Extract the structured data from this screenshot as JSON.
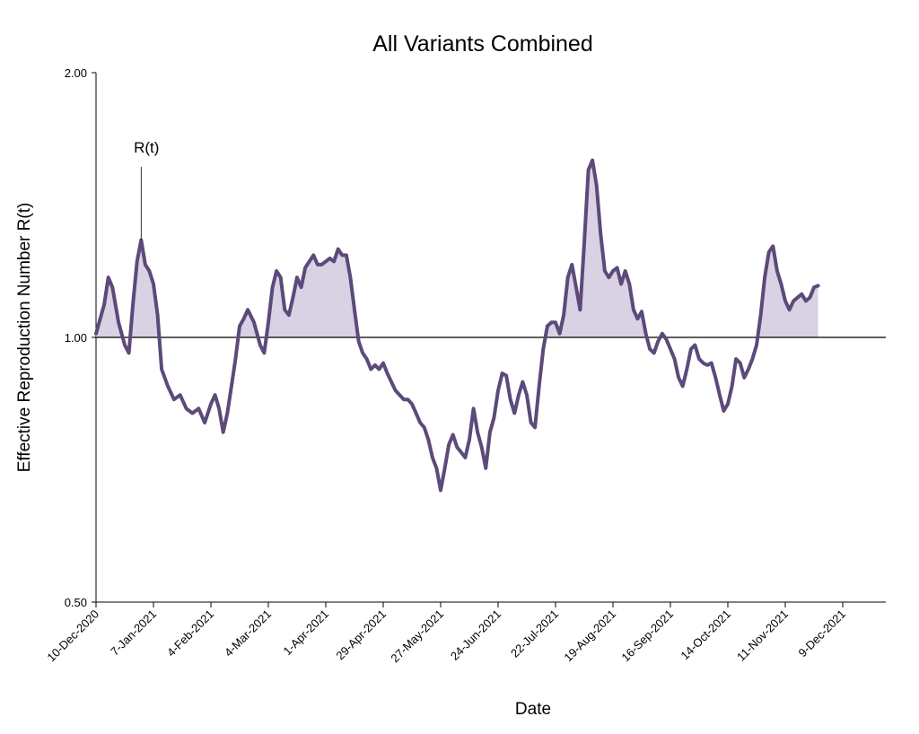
{
  "chart_data": {
    "type": "line",
    "title": "All Variants Combined",
    "x_label": "Date",
    "y_label": "Effective Reproduction Number R(t)",
    "log_y": true,
    "color": "#5b4a7a",
    "fill_color": "#d9d1e4",
    "reference_line": 1,
    "xlim": [
      "2020-12-10",
      "2021-12-30"
    ],
    "xticks": [
      {
        "value": "2020-12-10",
        "label": "10-Dec-2020"
      },
      {
        "value": "2021-01-07",
        "label": "7-Jan-2021"
      },
      {
        "value": "2021-02-04",
        "label": "4-Feb-2021"
      },
      {
        "value": "2021-03-04",
        "label": "4-Mar-2021"
      },
      {
        "value": "2021-04-01",
        "label": "1-Apr-2021"
      },
      {
        "value": "2021-04-29",
        "label": "29-Apr-2021"
      },
      {
        "value": "2021-05-27",
        "label": "27-May-2021"
      },
      {
        "value": "2021-06-24",
        "label": "24-Jun-2021"
      },
      {
        "value": "2021-07-22",
        "label": "22-Jul-2021"
      },
      {
        "value": "2021-08-19",
        "label": "19-Aug-2021"
      },
      {
        "value": "2021-09-16",
        "label": "16-Sep-2021"
      },
      {
        "value": "2021-10-14",
        "label": "14-Oct-2021"
      },
      {
        "value": "2021-11-11",
        "label": "11-Nov-2021"
      },
      {
        "value": "2021-12-09",
        "label": "9-Dec-2021"
      }
    ],
    "ylim": [
      0.5,
      2
    ],
    "yticks": [
      {
        "value": 0.5,
        "label": "0.50"
      },
      {
        "value": 1,
        "label": "1.00"
      },
      {
        "value": 2,
        "label": "2.00"
      }
    ],
    "annotation": {
      "text": "R(t)",
      "x": "2021-01-01",
      "y": 1.29
    },
    "x": [
      "2020-12-10",
      "2020-12-14",
      "2020-12-16",
      "2020-12-18",
      "2020-12-21",
      "2020-12-24",
      "2020-12-26",
      "2020-12-28",
      "2020-12-30",
      "2021-01-01",
      "2021-01-03",
      "2021-01-05",
      "2021-01-07",
      "2021-01-09",
      "2021-01-11",
      "2021-01-14",
      "2021-01-17",
      "2021-01-20",
      "2021-01-23",
      "2021-01-26",
      "2021-01-29",
      "2021-02-01",
      "2021-02-04",
      "2021-02-06",
      "2021-02-08",
      "2021-02-10",
      "2021-02-12",
      "2021-02-14",
      "2021-02-16",
      "2021-02-18",
      "2021-02-20",
      "2021-02-22",
      "2021-02-25",
      "2021-02-28",
      "2021-03-02",
      "2021-03-04",
      "2021-03-06",
      "2021-03-08",
      "2021-03-10",
      "2021-03-12",
      "2021-03-14",
      "2021-03-16",
      "2021-03-18",
      "2021-03-20",
      "2021-03-22",
      "2021-03-24",
      "2021-03-26",
      "2021-03-28",
      "2021-03-30",
      "2021-04-01",
      "2021-04-03",
      "2021-04-05",
      "2021-04-07",
      "2021-04-09",
      "2021-04-11",
      "2021-04-13",
      "2021-04-15",
      "2021-04-17",
      "2021-04-19",
      "2021-04-21",
      "2021-04-23",
      "2021-04-25",
      "2021-04-27",
      "2021-04-29",
      "2021-05-01",
      "2021-05-03",
      "2021-05-05",
      "2021-05-07",
      "2021-05-09",
      "2021-05-11",
      "2021-05-13",
      "2021-05-15",
      "2021-05-17",
      "2021-05-19",
      "2021-05-21",
      "2021-05-23",
      "2021-05-25",
      "2021-05-27",
      "2021-05-29",
      "2021-05-31",
      "2021-06-02",
      "2021-06-04",
      "2021-06-06",
      "2021-06-08",
      "2021-06-10",
      "2021-06-12",
      "2021-06-14",
      "2021-06-16",
      "2021-06-18",
      "2021-06-20",
      "2021-06-22",
      "2021-06-24",
      "2021-06-26",
      "2021-06-28",
      "2021-06-30",
      "2021-07-02",
      "2021-07-04",
      "2021-07-06",
      "2021-07-08",
      "2021-07-10",
      "2021-07-12",
      "2021-07-14",
      "2021-07-16",
      "2021-07-18",
      "2021-07-20",
      "2021-07-22",
      "2021-07-24",
      "2021-07-26",
      "2021-07-28",
      "2021-07-30",
      "2021-08-01",
      "2021-08-03",
      "2021-08-05",
      "2021-08-07",
      "2021-08-09",
      "2021-08-11",
      "2021-08-13",
      "2021-08-15",
      "2021-08-17",
      "2021-08-19",
      "2021-08-21",
      "2021-08-23",
      "2021-08-25",
      "2021-08-27",
      "2021-08-29",
      "2021-08-31",
      "2021-09-02",
      "2021-09-04",
      "2021-09-06",
      "2021-09-08",
      "2021-09-10",
      "2021-09-12",
      "2021-09-14",
      "2021-09-16",
      "2021-09-18",
      "2021-09-20",
      "2021-09-22",
      "2021-09-24",
      "2021-09-26",
      "2021-09-28",
      "2021-09-30",
      "2021-10-02",
      "2021-10-04",
      "2021-10-06",
      "2021-10-08",
      "2021-10-10",
      "2021-10-12",
      "2021-10-14",
      "2021-10-16",
      "2021-10-18",
      "2021-10-20",
      "2021-10-22",
      "2021-10-24",
      "2021-10-26",
      "2021-10-28",
      "2021-10-30",
      "2021-11-01",
      "2021-11-03",
      "2021-11-05",
      "2021-11-07",
      "2021-11-09",
      "2021-11-11",
      "2021-11-13",
      "2021-11-15",
      "2021-11-17",
      "2021-11-19",
      "2021-11-21",
      "2021-11-23",
      "2021-11-25",
      "2021-11-27"
    ],
    "values": [
      1.01,
      1.09,
      1.17,
      1.14,
      1.04,
      0.98,
      0.96,
      1.09,
      1.22,
      1.29,
      1.21,
      1.19,
      1.15,
      1.06,
      0.92,
      0.88,
      0.85,
      0.86,
      0.83,
      0.82,
      0.83,
      0.8,
      0.84,
      0.86,
      0.83,
      0.78,
      0.82,
      0.88,
      0.945,
      1.03,
      1.05,
      1.075,
      1.04,
      0.98,
      0.96,
      1.04,
      1.14,
      1.19,
      1.17,
      1.075,
      1.06,
      1.11,
      1.17,
      1.14,
      1.2,
      1.22,
      1.24,
      1.21,
      1.21,
      1.22,
      1.23,
      1.22,
      1.26,
      1.24,
      1.24,
      1.17,
      1.075,
      0.99,
      0.96,
      0.945,
      0.92,
      0.93,
      0.92,
      0.935,
      0.91,
      0.89,
      0.87,
      0.86,
      0.85,
      0.85,
      0.84,
      0.82,
      0.8,
      0.79,
      0.765,
      0.73,
      0.71,
      0.67,
      0.71,
      0.755,
      0.775,
      0.75,
      0.74,
      0.73,
      0.765,
      0.83,
      0.78,
      0.75,
      0.71,
      0.78,
      0.81,
      0.87,
      0.91,
      0.905,
      0.85,
      0.82,
      0.86,
      0.89,
      0.86,
      0.8,
      0.79,
      0.88,
      0.97,
      1.03,
      1.04,
      1.04,
      1.01,
      1.06,
      1.17,
      1.21,
      1.14,
      1.075,
      1.28,
      1.55,
      1.59,
      1.49,
      1.31,
      1.19,
      1.17,
      1.19,
      1.2,
      1.15,
      1.19,
      1.15,
      1.075,
      1.05,
      1.07,
      1.01,
      0.97,
      0.96,
      0.99,
      1.01,
      0.995,
      0.97,
      0.945,
      0.9,
      0.88,
      0.92,
      0.97,
      0.98,
      0.945,
      0.935,
      0.93,
      0.935,
      0.9,
      0.86,
      0.825,
      0.84,
      0.88,
      0.945,
      0.935,
      0.9,
      0.92,
      0.945,
      0.98,
      1.06,
      1.17,
      1.25,
      1.27,
      1.19,
      1.15,
      1.1,
      1.075,
      1.1,
      1.11,
      1.12,
      1.1,
      1.11,
      1.14,
      1.145
    ]
  }
}
